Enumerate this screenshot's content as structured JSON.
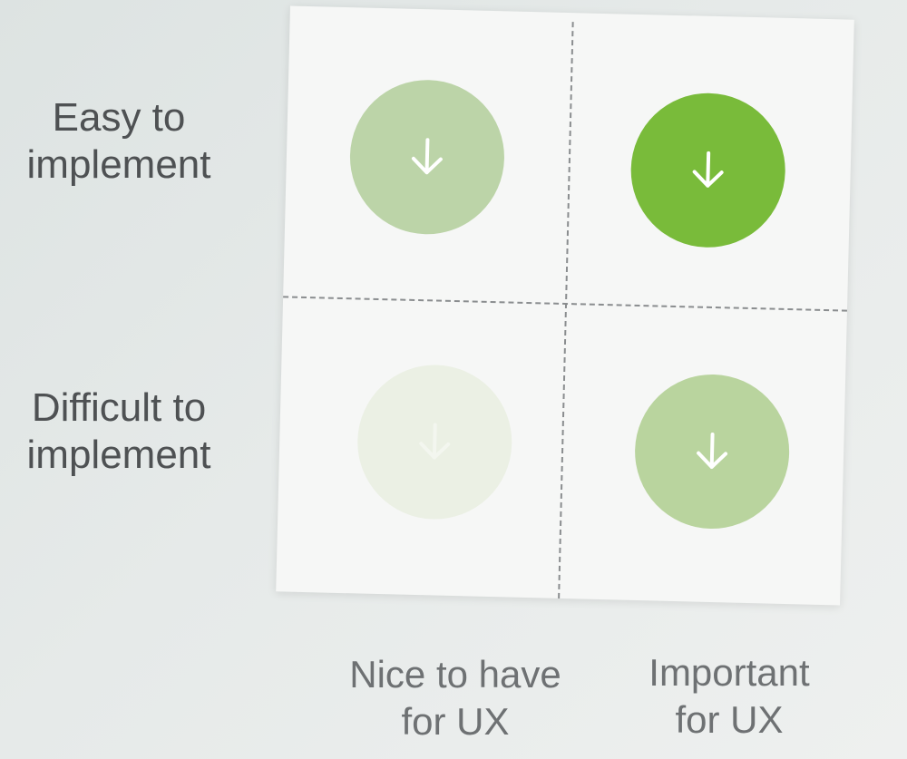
{
  "rows": {
    "easy": "Easy to\nimplement",
    "difficult": "Difficult to\nimplement"
  },
  "columns": {
    "nice": "Nice to have\nfor UX",
    "important": "Important\nfor UX"
  },
  "quadrants": [
    {
      "position": "top-left",
      "row": "Easy to implement",
      "column": "Nice to have for UX",
      "icon": "arrow-down-icon",
      "color": "#bcd4a8"
    },
    {
      "position": "top-right",
      "row": "Easy to implement",
      "column": "Important for UX",
      "icon": "arrow-down-icon",
      "color": "#79bb3a"
    },
    {
      "position": "bottom-left",
      "row": "Difficult to implement",
      "column": "Nice to have for UX",
      "icon": "arrow-down-icon",
      "color": "#ebf0e4"
    },
    {
      "position": "bottom-right",
      "row": "Difficult to implement",
      "column": "Important for UX",
      "icon": "arrow-down-icon",
      "color": "#b9d49e"
    }
  ]
}
